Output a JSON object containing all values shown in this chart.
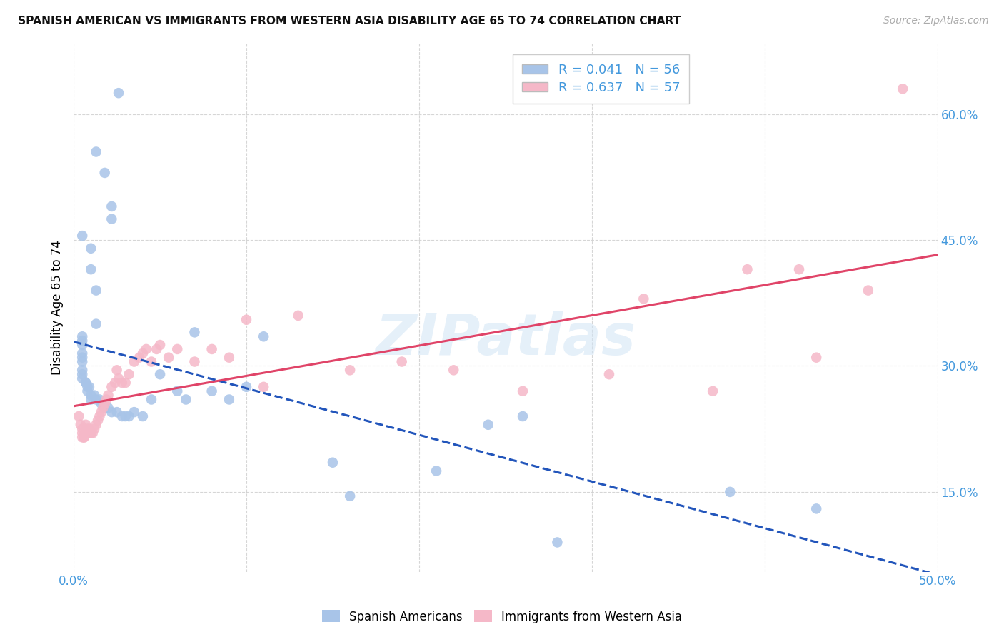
{
  "title": "SPANISH AMERICAN VS IMMIGRANTS FROM WESTERN ASIA DISABILITY AGE 65 TO 74 CORRELATION CHART",
  "source": "Source: ZipAtlas.com",
  "ylabel": "Disability Age 65 to 74",
  "xlim": [
    0.0,
    0.5
  ],
  "ylim": [
    0.055,
    0.685
  ],
  "x_ticks": [
    0.0,
    0.1,
    0.2,
    0.3,
    0.4,
    0.5
  ],
  "x_tick_labels": [
    "0.0%",
    "",
    "",
    "",
    "",
    "50.0%"
  ],
  "y_ticks": [
    0.15,
    0.3,
    0.45,
    0.6
  ],
  "y_tick_labels": [
    "15.0%",
    "30.0%",
    "45.0%",
    "60.0%"
  ],
  "r_blue": 0.041,
  "n_blue": 56,
  "r_pink": 0.637,
  "n_pink": 57,
  "blue_color": "#a8c4e8",
  "pink_color": "#f5b8c8",
  "line_blue": "#2255bb",
  "line_pink": "#e04468",
  "legend_label_blue": "Spanish Americans",
  "legend_label_pink": "Immigrants from Western Asia",
  "watermark": "ZIPatlas",
  "blue_scatter_x": [
    0.026,
    0.013,
    0.018,
    0.022,
    0.022,
    0.005,
    0.01,
    0.01,
    0.013,
    0.013,
    0.005,
    0.005,
    0.005,
    0.005,
    0.005,
    0.005,
    0.005,
    0.005,
    0.005,
    0.007,
    0.007,
    0.008,
    0.008,
    0.009,
    0.01,
    0.01,
    0.012,
    0.013,
    0.015,
    0.016,
    0.018,
    0.02,
    0.022,
    0.025,
    0.028,
    0.03,
    0.032,
    0.035,
    0.04,
    0.045,
    0.05,
    0.06,
    0.065,
    0.07,
    0.08,
    0.09,
    0.1,
    0.11,
    0.15,
    0.16,
    0.21,
    0.24,
    0.26,
    0.28,
    0.38,
    0.43
  ],
  "blue_scatter_y": [
    0.625,
    0.555,
    0.53,
    0.49,
    0.475,
    0.455,
    0.44,
    0.415,
    0.39,
    0.35,
    0.335,
    0.33,
    0.325,
    0.315,
    0.31,
    0.305,
    0.295,
    0.29,
    0.285,
    0.28,
    0.28,
    0.275,
    0.27,
    0.275,
    0.265,
    0.26,
    0.265,
    0.26,
    0.26,
    0.255,
    0.25,
    0.25,
    0.245,
    0.245,
    0.24,
    0.24,
    0.24,
    0.245,
    0.24,
    0.26,
    0.29,
    0.27,
    0.26,
    0.34,
    0.27,
    0.26,
    0.275,
    0.335,
    0.185,
    0.145,
    0.175,
    0.23,
    0.24,
    0.09,
    0.15,
    0.13
  ],
  "pink_scatter_x": [
    0.003,
    0.004,
    0.005,
    0.005,
    0.005,
    0.006,
    0.006,
    0.007,
    0.007,
    0.008,
    0.009,
    0.01,
    0.01,
    0.011,
    0.012,
    0.013,
    0.014,
    0.015,
    0.016,
    0.017,
    0.018,
    0.019,
    0.02,
    0.022,
    0.024,
    0.025,
    0.026,
    0.028,
    0.03,
    0.032,
    0.035,
    0.038,
    0.04,
    0.042,
    0.045,
    0.048,
    0.05,
    0.055,
    0.06,
    0.07,
    0.08,
    0.09,
    0.1,
    0.11,
    0.13,
    0.16,
    0.19,
    0.22,
    0.26,
    0.31,
    0.33,
    0.37,
    0.39,
    0.42,
    0.43,
    0.46,
    0.48
  ],
  "pink_scatter_y": [
    0.24,
    0.23,
    0.225,
    0.22,
    0.215,
    0.215,
    0.215,
    0.22,
    0.23,
    0.225,
    0.225,
    0.22,
    0.22,
    0.22,
    0.225,
    0.23,
    0.235,
    0.24,
    0.245,
    0.25,
    0.255,
    0.26,
    0.265,
    0.275,
    0.28,
    0.295,
    0.285,
    0.28,
    0.28,
    0.29,
    0.305,
    0.31,
    0.315,
    0.32,
    0.305,
    0.32,
    0.325,
    0.31,
    0.32,
    0.305,
    0.32,
    0.31,
    0.355,
    0.275,
    0.36,
    0.295,
    0.305,
    0.295,
    0.27,
    0.29,
    0.38,
    0.27,
    0.415,
    0.415,
    0.31,
    0.39,
    0.63
  ]
}
